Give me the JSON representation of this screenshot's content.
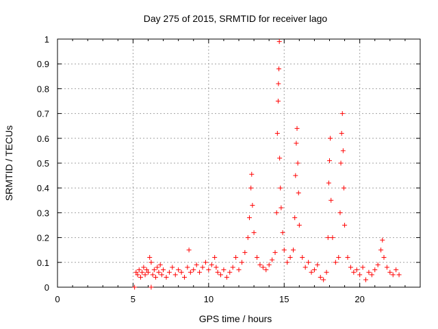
{
  "chart_data": {
    "type": "scatter",
    "title": "Day 275 of 2015, SRMTID for receiver lago",
    "xlabel": "GPS time / hours",
    "ylabel": "SRMTID / TECUs",
    "xlim": [
      0,
      24
    ],
    "ylim": [
      0,
      1
    ],
    "grid": true,
    "marker": "plus",
    "color": "#ff0000",
    "xticks": [
      0,
      5,
      10,
      15,
      20
    ],
    "xtick_labels": [
      "0",
      "5",
      "10",
      "15",
      "20"
    ],
    "yticks": [
      0,
      0.1,
      0.2,
      0.3,
      0.4,
      0.5,
      0.6,
      0.7,
      0.8,
      0.9,
      1
    ],
    "ytick_labels": [
      "0",
      "0.1",
      "0.2",
      "0.3",
      "0.4",
      "0.5",
      "0.6",
      "0.7",
      "0.8",
      "0.9",
      "1"
    ],
    "series": [
      {
        "name": "SRMTID",
        "points": [
          [
            5.1,
            0.0
          ],
          [
            6.2,
            0.0
          ],
          [
            5.2,
            0.06
          ],
          [
            5.3,
            0.05
          ],
          [
            5.4,
            0.07
          ],
          [
            5.5,
            0.04
          ],
          [
            5.6,
            0.06
          ],
          [
            5.7,
            0.08
          ],
          [
            5.8,
            0.05
          ],
          [
            5.9,
            0.07
          ],
          [
            6.0,
            0.06
          ],
          [
            6.1,
            0.12
          ],
          [
            6.2,
            0.1
          ],
          [
            6.3,
            0.05
          ],
          [
            6.4,
            0.07
          ],
          [
            6.5,
            0.04
          ],
          [
            6.6,
            0.08
          ],
          [
            6.7,
            0.06
          ],
          [
            6.8,
            0.09
          ],
          [
            6.9,
            0.05
          ],
          [
            7.0,
            0.07
          ],
          [
            7.2,
            0.04
          ],
          [
            7.4,
            0.06
          ],
          [
            7.6,
            0.08
          ],
          [
            7.8,
            0.05
          ],
          [
            8.0,
            0.07
          ],
          [
            8.2,
            0.06
          ],
          [
            8.4,
            0.04
          ],
          [
            8.6,
            0.08
          ],
          [
            8.7,
            0.15
          ],
          [
            8.8,
            0.06
          ],
          [
            9.0,
            0.07
          ],
          [
            9.2,
            0.09
          ],
          [
            9.4,
            0.06
          ],
          [
            9.6,
            0.08
          ],
          [
            9.8,
            0.1
          ],
          [
            10.0,
            0.07
          ],
          [
            10.2,
            0.09
          ],
          [
            10.4,
            0.12
          ],
          [
            10.5,
            0.08
          ],
          [
            10.6,
            0.06
          ],
          [
            10.8,
            0.05
          ],
          [
            11.0,
            0.07
          ],
          [
            11.2,
            0.04
          ],
          [
            11.4,
            0.06
          ],
          [
            11.6,
            0.08
          ],
          [
            11.8,
            0.12
          ],
          [
            12.0,
            0.07
          ],
          [
            12.2,
            0.1
          ],
          [
            12.4,
            0.14
          ],
          [
            12.6,
            0.2
          ],
          [
            12.7,
            0.28
          ],
          [
            12.8,
            0.4
          ],
          [
            12.85,
            0.455
          ],
          [
            12.9,
            0.33
          ],
          [
            13.0,
            0.22
          ],
          [
            13.2,
            0.12
          ],
          [
            13.4,
            0.09
          ],
          [
            13.6,
            0.08
          ],
          [
            13.8,
            0.07
          ],
          [
            14.0,
            0.09
          ],
          [
            14.2,
            0.11
          ],
          [
            14.4,
            0.14
          ],
          [
            14.5,
            0.3
          ],
          [
            14.55,
            0.62
          ],
          [
            14.6,
            0.75
          ],
          [
            14.62,
            0.82
          ],
          [
            14.65,
            0.88
          ],
          [
            14.68,
            0.99
          ],
          [
            14.7,
            0.52
          ],
          [
            14.75,
            0.4
          ],
          [
            14.8,
            0.32
          ],
          [
            14.9,
            0.22
          ],
          [
            15.0,
            0.15
          ],
          [
            15.2,
            0.1
          ],
          [
            15.4,
            0.12
          ],
          [
            15.6,
            0.15
          ],
          [
            15.7,
            0.28
          ],
          [
            15.75,
            0.45
          ],
          [
            15.8,
            0.58
          ],
          [
            15.85,
            0.64
          ],
          [
            15.9,
            0.5
          ],
          [
            15.95,
            0.38
          ],
          [
            16.0,
            0.25
          ],
          [
            16.2,
            0.12
          ],
          [
            16.4,
            0.08
          ],
          [
            16.6,
            0.1
          ],
          [
            16.8,
            0.06
          ],
          [
            17.0,
            0.07
          ],
          [
            17.2,
            0.09
          ],
          [
            17.4,
            0.04
          ],
          [
            17.6,
            0.03
          ],
          [
            17.8,
            0.06
          ],
          [
            17.9,
            0.2
          ],
          [
            17.95,
            0.42
          ],
          [
            18.0,
            0.51
          ],
          [
            18.05,
            0.6
          ],
          [
            18.1,
            0.35
          ],
          [
            18.2,
            0.2
          ],
          [
            18.4,
            0.1
          ],
          [
            18.6,
            0.12
          ],
          [
            18.7,
            0.3
          ],
          [
            18.75,
            0.5
          ],
          [
            18.8,
            0.62
          ],
          [
            18.85,
            0.7
          ],
          [
            18.9,
            0.55
          ],
          [
            18.95,
            0.4
          ],
          [
            19.0,
            0.25
          ],
          [
            19.2,
            0.12
          ],
          [
            19.4,
            0.08
          ],
          [
            19.6,
            0.06
          ],
          [
            19.8,
            0.07
          ],
          [
            20.0,
            0.05
          ],
          [
            20.2,
            0.08
          ],
          [
            20.4,
            0.03
          ],
          [
            20.6,
            0.06
          ],
          [
            20.8,
            0.05
          ],
          [
            21.0,
            0.07
          ],
          [
            21.2,
            0.09
          ],
          [
            21.4,
            0.15
          ],
          [
            21.5,
            0.19
          ],
          [
            21.6,
            0.12
          ],
          [
            21.8,
            0.08
          ],
          [
            22.0,
            0.06
          ],
          [
            22.2,
            0.05
          ],
          [
            22.4,
            0.07
          ],
          [
            22.6,
            0.05
          ]
        ]
      }
    ]
  }
}
